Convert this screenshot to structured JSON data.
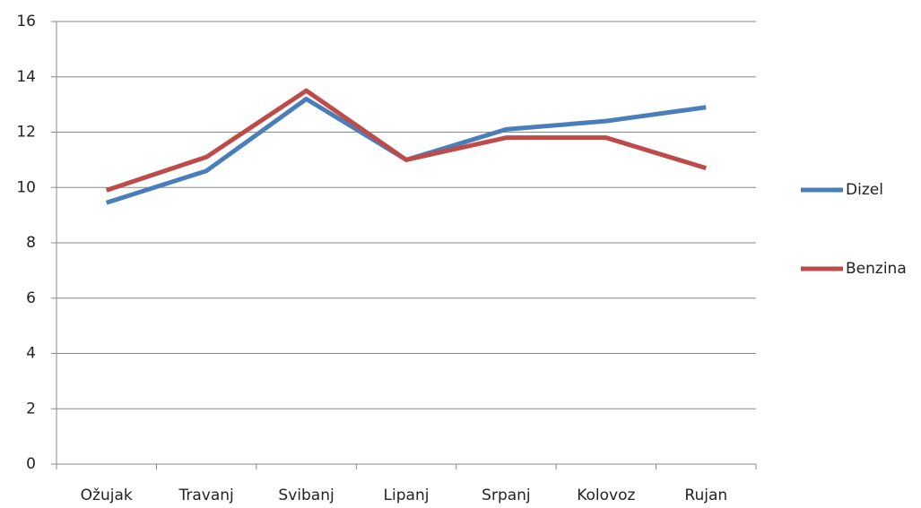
{
  "chart_data": {
    "type": "line",
    "categories": [
      "Ožujak",
      "Travanj",
      "Svibanj",
      "Lipanj",
      "Srpanj",
      "Kolovoz",
      "Rujan"
    ],
    "series": [
      {
        "name": "Dizel",
        "color": "#4a7ebb",
        "values": [
          9.45,
          10.6,
          13.2,
          11.0,
          12.1,
          12.4,
          12.9
        ]
      },
      {
        "name": "Benzina",
        "color": "#be4b48",
        "values": [
          9.9,
          11.1,
          13.5,
          11.0,
          11.8,
          11.8,
          10.7
        ]
      }
    ],
    "ylim": [
      0,
      16
    ],
    "yticks": [
      0,
      2,
      4,
      6,
      8,
      10,
      12,
      14,
      16
    ],
    "grid": true,
    "legend": "right"
  }
}
